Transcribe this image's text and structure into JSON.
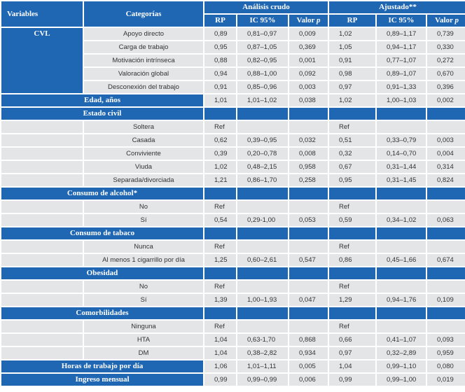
{
  "header": {
    "variables": "Variables",
    "categorias": "Categorías",
    "crudo": "Análisis crudo",
    "ajustado": "Ajustado**",
    "rp": "RP",
    "ic": "IC 95%",
    "valor": "Valor",
    "p": "p"
  },
  "sections": [
    {
      "label": "CVL",
      "type": "group-inline",
      "rows": [
        {
          "cat": "Apoyo directo",
          "rp1": "0,89",
          "ic1": "0,81–0,97",
          "p1": "0,009",
          "rp2": "1,02",
          "ic2": "0,89–1,17",
          "p2": "0,739"
        },
        {
          "cat": "Carga de trabajo",
          "rp1": "0,95",
          "ic1": "0,87–1,05",
          "p1": "0,369",
          "rp2": "1,05",
          "ic2": "0,94–1,17",
          "p2": "0,330"
        },
        {
          "cat": "Motivación intrínseca",
          "rp1": "0,88",
          "ic1": "0,82–0,95",
          "p1": "0,001",
          "rp2": "0,91",
          "ic2": "0,77–1,07",
          "p2": "0,272"
        },
        {
          "cat": "Valoración global",
          "rp1": "0,94",
          "ic1": "0,88–1,00",
          "p1": "0,092",
          "rp2": "0,98",
          "ic2": "0,89–1,07",
          "p2": "0,670"
        },
        {
          "cat": "Desconexión del trabajo",
          "rp1": "0,91",
          "ic1": "0,85–0,96",
          "p1": "0,003",
          "rp2": "0,97",
          "ic2": "0,91–1,33",
          "p2": "0,396"
        }
      ]
    },
    {
      "label": "Edad, años",
      "type": "single",
      "rp1": "1,01",
      "ic1": "1,01–1,02",
      "p1": "0,038",
      "rp2": "1,02",
      "ic2": "1,00–1,03",
      "p2": "0,002"
    },
    {
      "label": "Estado civil",
      "type": "group",
      "rows": [
        {
          "cat": "Soltera",
          "rp1": "Ref",
          "ic1": "",
          "p1": "",
          "rp2": "Ref",
          "ic2": "",
          "p2": ""
        },
        {
          "cat": "Casada",
          "rp1": "0,62",
          "ic1": "0,39–0,95",
          "p1": "0,032",
          "rp2": "0,51",
          "ic2": "0,33–0,79",
          "p2": "0,003"
        },
        {
          "cat": "Conviviente",
          "rp1": "0,39",
          "ic1": "0,20–0,78",
          "p1": "0,008",
          "rp2": "0,32",
          "ic2": "0,14–0,70",
          "p2": "0,004"
        },
        {
          "cat": "Viuda",
          "rp1": "1,02",
          "ic1": "0,48–2,15",
          "p1": "0,958",
          "rp2": "0,67",
          "ic2": "0,31–1,44",
          "p2": "0,314"
        },
        {
          "cat": "Separada/divorciada",
          "rp1": "1,21",
          "ic1": "0,86–1,70",
          "p1": "0,258",
          "rp2": "0,95",
          "ic2": "0,31–1,45",
          "p2": "0,824"
        }
      ]
    },
    {
      "label": "Consumo de alcohol*",
      "type": "group",
      "rows": [
        {
          "cat": "No",
          "rp1": "Ref",
          "ic1": "",
          "p1": "",
          "rp2": "Ref",
          "ic2": "",
          "p2": ""
        },
        {
          "cat": "Sí",
          "rp1": "0,54",
          "ic1": "0,29-1,00",
          "p1": "0,053",
          "rp2": "0,59",
          "ic2": "0,34–1,02",
          "p2": "0,063"
        }
      ]
    },
    {
      "label": "Consumo de tabaco",
      "type": "group",
      "rows": [
        {
          "cat": "Nunca",
          "rp1": "Ref",
          "ic1": "",
          "p1": "",
          "rp2": "Ref",
          "ic2": "",
          "p2": ""
        },
        {
          "cat": "Al menos 1 cigarrillo por día",
          "rp1": "1,25",
          "ic1": "0,60–2,61",
          "p1": "0,547",
          "rp2": "0,86",
          "ic2": "0,45–1,66",
          "p2": "0,674"
        }
      ]
    },
    {
      "label": "Obesidad",
      "type": "group",
      "rows": [
        {
          "cat": "No",
          "rp1": "Ref",
          "ic1": "",
          "p1": "",
          "rp2": "Ref",
          "ic2": "",
          "p2": ""
        },
        {
          "cat": "Sí",
          "rp1": "1,39",
          "ic1": "1,00–1,93",
          "p1": "0,047",
          "rp2": "1,29",
          "ic2": "0,94–1,76",
          "p2": "0,109"
        }
      ]
    },
    {
      "label": "Comorbilidades",
      "type": "group",
      "rows": [
        {
          "cat": "Ninguna",
          "rp1": "Ref",
          "ic1": "",
          "p1": "",
          "rp2": "Ref",
          "ic2": "",
          "p2": ""
        },
        {
          "cat": "HTA",
          "rp1": "1,04",
          "ic1": "0,63-1,70",
          "p1": "0,868",
          "rp2": "0,66",
          "ic2": "0,41–1,07",
          "p2": "0,093"
        },
        {
          "cat": "DM",
          "rp1": "1,04",
          "ic1": "0,38–2,82",
          "p1": "0,934",
          "rp2": "0,97",
          "ic2": "0,32–2,89",
          "p2": "0,959"
        }
      ]
    },
    {
      "label": "Horas de trabajo por día",
      "type": "single",
      "rp1": "1,06",
      "ic1": "1,01–1,11",
      "p1": "0,005",
      "rp2": "1,04",
      "ic2": "0,99–1,10",
      "p2": "0,080"
    },
    {
      "label": "Ingreso mensual",
      "type": "single",
      "rp1": "0,99",
      "ic1": "0,99–0,99",
      "p1": "0,006",
      "rp2": "0,99",
      "ic2": "0,99–1,00",
      "p2": "0,019"
    }
  ]
}
